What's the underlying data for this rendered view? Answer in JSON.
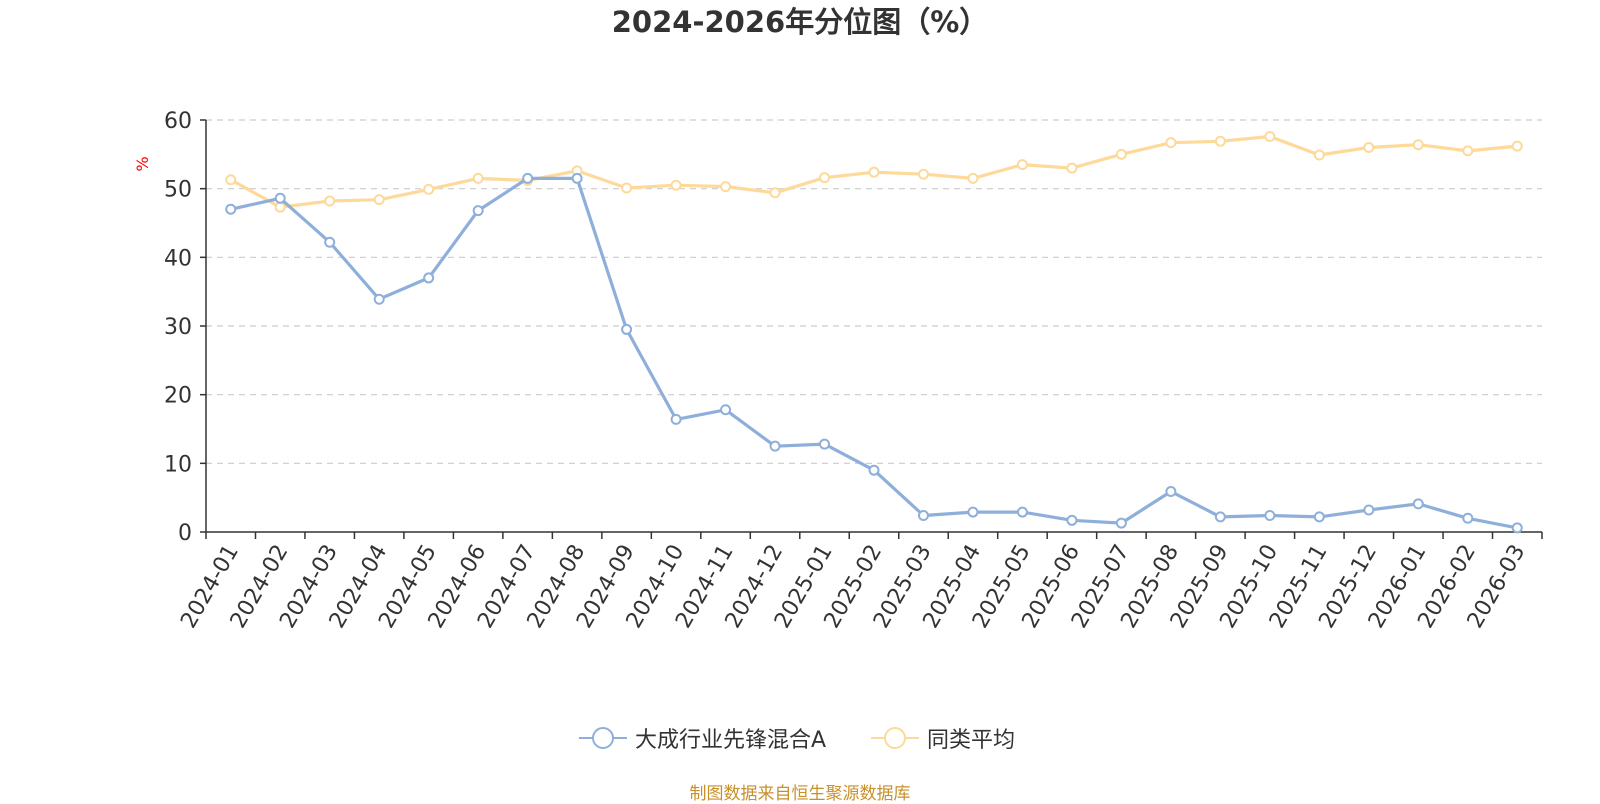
{
  "chart_data": {
    "type": "line",
    "title": "2024-2026年分位图（%）",
    "ylabel": "%",
    "xlabel": "",
    "ylim": [
      0,
      60
    ],
    "yticks": [
      0,
      10,
      20,
      30,
      40,
      50,
      60
    ],
    "grid": true,
    "legend_position": "bottom",
    "categories": [
      "2024-01",
      "2024-02",
      "2024-03",
      "2024-04",
      "2024-05",
      "2024-06",
      "2024-07",
      "2024-08",
      "2024-09",
      "2024-10",
      "2024-11",
      "2024-12",
      "2025-01",
      "2025-02",
      "2025-03",
      "2025-04",
      "2025-05",
      "2025-06",
      "2025-07",
      "2025-08",
      "2025-09",
      "2025-10",
      "2025-11",
      "2025-12",
      "2026-01",
      "2026-02",
      "2026-03"
    ],
    "series": [
      {
        "name": "大成行业先锋混合A",
        "color": "#8fafdb",
        "values": [
          47.0,
          48.6,
          42.2,
          33.9,
          37.0,
          46.8,
          51.5,
          51.5,
          29.5,
          16.4,
          17.8,
          12.5,
          12.8,
          9.0,
          2.4,
          2.9,
          2.9,
          1.7,
          1.3,
          5.9,
          2.2,
          2.4,
          2.2,
          3.2,
          4.1,
          2.0,
          0.6
        ]
      },
      {
        "name": "同类平均",
        "color": "#fdd99a",
        "values": [
          51.3,
          47.3,
          48.2,
          48.4,
          49.9,
          51.5,
          51.2,
          52.6,
          50.1,
          50.5,
          50.3,
          49.4,
          51.6,
          52.4,
          52.1,
          51.5,
          53.5,
          53.0,
          55.0,
          56.7,
          56.9,
          57.6,
          54.9,
          56.0,
          56.4,
          55.5,
          56.2
        ]
      }
    ]
  },
  "footer": {
    "source": "制图数据来自恒生聚源数据库"
  }
}
